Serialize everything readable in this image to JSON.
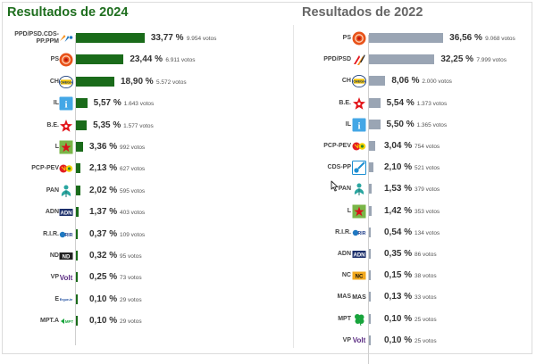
{
  "chart_data": [
    {
      "type": "bar",
      "orientation": "horizontal",
      "title": "Resultados de 2024",
      "bar_color": "#1a6b1a",
      "categories": [
        "PPD/PSD.CDS-PP.PPM",
        "PS",
        "CH",
        "IL",
        "B.E.",
        "L",
        "PCP-PEV",
        "PAN",
        "ADN",
        "R.I.R.",
        "ND",
        "VP",
        "E",
        "MPT.A"
      ],
      "values": [
        33.77,
        23.44,
        18.9,
        5.57,
        5.35,
        3.36,
        2.13,
        2.02,
        1.37,
        0.37,
        0.32,
        0.25,
        0.1,
        0.1
      ],
      "pct_labels": [
        "33,77 %",
        "23,44 %",
        "18,90 %",
        "5,57 %",
        "5,35 %",
        "3,36 %",
        "2,13 %",
        "2,02 %",
        "1,37 %",
        "0,37 %",
        "0,32 %",
        "0,25 %",
        "0,10 %",
        "0,10 %"
      ],
      "vote_labels": [
        "9.954 votos",
        "6.911 votos",
        "5.572 votos",
        "1.643 votos",
        "1.577 votos",
        "992 votos",
        "627 votos",
        "595 votos",
        "403 votos",
        "109 votos",
        "95 votos",
        "73 votos",
        "29 votos",
        "29 votos"
      ],
      "logos": [
        "ad-coalition-logo",
        "ps-fist-rose-logo",
        "chega-logo",
        "il-logo",
        "be-star-logo",
        "livre-logo",
        "pcp-pev-logo",
        "pan-logo",
        "adn-logo",
        "rir-logo",
        "nd-logo",
        "volt-logo",
        "ergue-te-logo",
        "mpt-a-logo"
      ],
      "logo_text": [
        "",
        "",
        "CHEGA",
        "i",
        "",
        "",
        "",
        "",
        "ADN",
        "RIR",
        "ND",
        "Volt",
        "Ergue-te",
        "MPT"
      ],
      "xlim": [
        0,
        40
      ]
    },
    {
      "type": "bar",
      "orientation": "horizontal",
      "title": "Resultados de 2022",
      "bar_color": "#9aa5b4",
      "categories": [
        "PS",
        "PPD/PSD",
        "CH",
        "B.E.",
        "IL",
        "PCP-PEV",
        "CDS-PP",
        "PAN",
        "L",
        "R.I.R.",
        "ADN",
        "NC",
        "MAS",
        "MPT",
        "VP"
      ],
      "values": [
        36.56,
        32.25,
        8.06,
        5.54,
        5.5,
        3.04,
        2.1,
        1.53,
        1.42,
        0.54,
        0.35,
        0.15,
        0.13,
        0.1,
        0.1
      ],
      "pct_labels": [
        "36,56 %",
        "32,25 %",
        "8,06 %",
        "5,54 %",
        "5,50 %",
        "3,04 %",
        "2,10 %",
        "1,53 %",
        "1,42 %",
        "0,54 %",
        "0,35 %",
        "0,15 %",
        "0,13 %",
        "0,10 %",
        "0,10 %"
      ],
      "vote_labels": [
        "9.068 votos",
        "7.999 votos",
        "2.000 votos",
        "1.373 votos",
        "1.365 votos",
        "754 votos",
        "521 votos",
        "379 votos",
        "353 votos",
        "134 votos",
        "86 votos",
        "38 votos",
        "33 votos",
        "25 votos",
        "25 votos"
      ],
      "logos": [
        "ps-fist-rose-logo",
        "psd-arrows-logo",
        "chega-logo",
        "be-star-logo",
        "il-logo",
        "pcp-pev-logo",
        "cds-pp-logo",
        "pan-logo",
        "livre-logo",
        "rir-logo",
        "adn-logo",
        "nc-logo",
        "mas-logo",
        "mpt-clover-logo",
        "volt-logo"
      ],
      "logo_text": [
        "",
        "",
        "CHEGA",
        "",
        "i",
        "",
        "",
        "",
        "",
        "RIR",
        "ADN",
        "NC",
        "MAS",
        "",
        "Volt"
      ],
      "xlim": [
        0,
        40
      ]
    }
  ]
}
